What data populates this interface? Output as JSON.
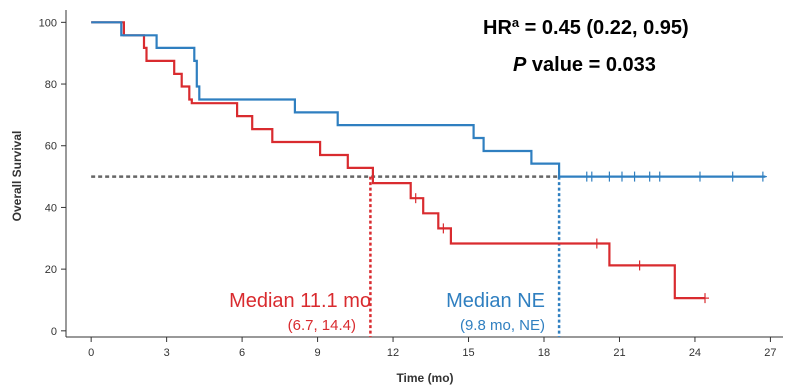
{
  "chart_data": {
    "type": "line",
    "subtype": "kaplan-meier step curves",
    "xlabel": "Time (mo)",
    "ylabel": "Overall Survival",
    "xlim": [
      -1,
      27.5
    ],
    "ylim": [
      -2,
      104
    ],
    "x_ticks": [
      0,
      3,
      6,
      9,
      12,
      15,
      18,
      21,
      24,
      27
    ],
    "y_ticks": [
      0,
      20,
      40,
      60,
      80,
      100
    ],
    "grid": false,
    "reference_line_y": 50,
    "annotations": {
      "hr_label": "HR",
      "hr_superscript": "a",
      "hr_value": " = 0.45 (0.22, 0.95)",
      "p_label": "P",
      "p_value": " value = 0.033",
      "red_median": "Median 11.1 mo",
      "red_ci": "(6.7, 14.4)",
      "blue_median": "Median NE",
      "blue_ci": "(9.8 mo, NE)"
    },
    "series": [
      {
        "color": "#d92b2f",
        "median_x": 11.1,
        "steps": [
          [
            0,
            100
          ],
          [
            1.3,
            100
          ],
          [
            1.3,
            95.8
          ],
          [
            2.1,
            95.8
          ],
          [
            2.1,
            91.7
          ],
          [
            2.2,
            91.7
          ],
          [
            2.2,
            87.5
          ],
          [
            3.3,
            87.5
          ],
          [
            3.3,
            83.3
          ],
          [
            3.6,
            83.3
          ],
          [
            3.6,
            79.2
          ],
          [
            3.9,
            79.2
          ],
          [
            3.9,
            75.0
          ],
          [
            4.0,
            75.0
          ],
          [
            4.0,
            73.8
          ],
          [
            5.8,
            73.8
          ],
          [
            5.8,
            69.6
          ],
          [
            6.4,
            69.6
          ],
          [
            6.4,
            65.4
          ],
          [
            7.2,
            65.4
          ],
          [
            7.2,
            61.2
          ],
          [
            9.1,
            61.2
          ],
          [
            9.1,
            57.0
          ],
          [
            10.2,
            57.0
          ],
          [
            10.2,
            52.8
          ],
          [
            11.2,
            52.8
          ],
          [
            11.2,
            47.9
          ],
          [
            12.7,
            47.9
          ],
          [
            12.7,
            43.0
          ],
          [
            13.2,
            43.0
          ],
          [
            13.2,
            38.1
          ],
          [
            13.8,
            38.1
          ],
          [
            13.8,
            33.2
          ],
          [
            14.3,
            33.2
          ],
          [
            14.3,
            28.3
          ],
          [
            20.6,
            28.3
          ],
          [
            20.6,
            21.2
          ],
          [
            23.2,
            21.2
          ],
          [
            23.2,
            10.6
          ],
          [
            24.4,
            10.6
          ]
        ],
        "censors": [
          [
            12.9,
            43.0
          ],
          [
            14.0,
            33.2
          ],
          [
            20.1,
            28.3
          ],
          [
            21.8,
            21.2
          ],
          [
            24.4,
            10.6
          ]
        ]
      },
      {
        "color": "#2f7fc0",
        "median_x": 18.6,
        "steps": [
          [
            0,
            100
          ],
          [
            1.2,
            100
          ],
          [
            1.2,
            95.8
          ],
          [
            2.6,
            95.8
          ],
          [
            2.6,
            91.7
          ],
          [
            4.1,
            91.7
          ],
          [
            4.1,
            87.5
          ],
          [
            4.2,
            87.5
          ],
          [
            4.2,
            79.2
          ],
          [
            4.3,
            79.2
          ],
          [
            4.3,
            75.0
          ],
          [
            8.1,
            75.0
          ],
          [
            8.1,
            70.8
          ],
          [
            9.8,
            70.8
          ],
          [
            9.8,
            66.7
          ],
          [
            15.2,
            66.7
          ],
          [
            15.2,
            62.5
          ],
          [
            15.6,
            62.5
          ],
          [
            15.6,
            58.3
          ],
          [
            17.5,
            58.3
          ],
          [
            17.5,
            54.2
          ],
          [
            18.6,
            54.2
          ],
          [
            18.6,
            50.0
          ],
          [
            26.8,
            50.0
          ]
        ],
        "censors": [
          [
            19.7,
            50.0
          ],
          [
            19.9,
            50.0
          ],
          [
            20.6,
            50.0
          ],
          [
            21.1,
            50.0
          ],
          [
            21.6,
            50.0
          ],
          [
            22.2,
            50.0
          ],
          [
            22.6,
            50.0
          ],
          [
            24.2,
            50.0
          ],
          [
            25.5,
            50.0
          ],
          [
            26.7,
            50.0
          ]
        ]
      }
    ]
  }
}
